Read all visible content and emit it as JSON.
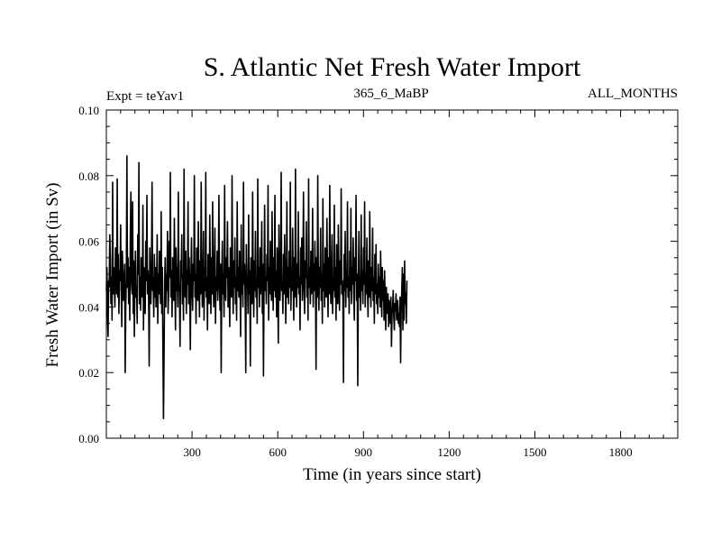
{
  "chart_data": {
    "type": "line",
    "title": "S. Atlantic Net Fresh Water Import",
    "subtitle_left": "Expt = teYav1",
    "subtitle_center": "365_6_MaBP",
    "subtitle_right": "ALL_MONTHS",
    "xlabel": "Time (in years since start)",
    "ylabel": "Fresh Water Import (in Sv)",
    "xlim": [
      0,
      2000
    ],
    "ylim": [
      0.0,
      0.1
    ],
    "xticks": [
      300,
      600,
      900,
      1200,
      1500,
      1800
    ],
    "xtick_labels": [
      "300",
      "600",
      "900",
      "1200",
      "1500",
      "1800"
    ],
    "yticks": [
      0.0,
      0.02,
      0.04,
      0.06,
      0.08,
      0.1
    ],
    "ytick_labels": [
      "0.00",
      "0.02",
      "0.04",
      "0.06",
      "0.08",
      "0.10"
    ],
    "grid": false,
    "series": [
      {
        "name": "Fresh Water Import",
        "color": "#000000",
        "sample_interval_years": 2,
        "mean": 0.048,
        "values": [
          0.045,
          0.052,
          0.038,
          0.031,
          0.048,
          0.046,
          0.062,
          0.055,
          0.041,
          0.049,
          0.036,
          0.078,
          0.044,
          0.052,
          0.047,
          0.04,
          0.058,
          0.051,
          0.044,
          0.079,
          0.043,
          0.056,
          0.038,
          0.051,
          0.048,
          0.065,
          0.045,
          0.034,
          0.057,
          0.05,
          0.042,
          0.046,
          0.053,
          0.02,
          0.04,
          0.049,
          0.086,
          0.046,
          0.055,
          0.041,
          0.052,
          0.036,
          0.063,
          0.075,
          0.047,
          0.044,
          0.072,
          0.038,
          0.054,
          0.031,
          0.048,
          0.057,
          0.043,
          0.045,
          0.035,
          0.062,
          0.05,
          0.084,
          0.041,
          0.049,
          0.039,
          0.055,
          0.047,
          0.043,
          0.071,
          0.033,
          0.052,
          0.046,
          0.038,
          0.06,
          0.048,
          0.074,
          0.044,
          0.051,
          0.042,
          0.022,
          0.058,
          0.046,
          0.041,
          0.053,
          0.078,
          0.045,
          0.049,
          0.037,
          0.056,
          0.043,
          0.052,
          0.04,
          0.047,
          0.062,
          0.035,
          0.05,
          0.044,
          0.057,
          0.046,
          0.041,
          0.069,
          0.038,
          0.052,
          0.027,
          0.006,
          0.025,
          0.048,
          0.055,
          0.04,
          0.05,
          0.045,
          0.063,
          0.038,
          0.044,
          0.06,
          0.049,
          0.081,
          0.043,
          0.051,
          0.037,
          0.055,
          0.048,
          0.042,
          0.067,
          0.046,
          0.033,
          0.058,
          0.045,
          0.052,
          0.04,
          0.075,
          0.047,
          0.044,
          0.028,
          0.054,
          0.049,
          0.062,
          0.041,
          0.05,
          0.036,
          0.082,
          0.046,
          0.043,
          0.057,
          0.038,
          0.051,
          0.047,
          0.072,
          0.041,
          0.055,
          0.044,
          0.027,
          0.049,
          0.061,
          0.045,
          0.039,
          0.053,
          0.048,
          0.08,
          0.043,
          0.05,
          0.035,
          0.058,
          0.046,
          0.042,
          0.066,
          0.049,
          0.037,
          0.054,
          0.044,
          0.078,
          0.051,
          0.04,
          0.047,
          0.063,
          0.036,
          0.052,
          0.045,
          0.081,
          0.043,
          0.049,
          0.033,
          0.056,
          0.047,
          0.041,
          0.068,
          0.05,
          0.038,
          0.055,
          0.044,
          0.072,
          0.048,
          0.04,
          0.052,
          0.064,
          0.035,
          0.049,
          0.045,
          0.057,
          0.042,
          0.051,
          0.074,
          0.046,
          0.039,
          0.053,
          0.02,
          0.048,
          0.06,
          0.044,
          0.05,
          0.037,
          0.077,
          0.046,
          0.042,
          0.055,
          0.049,
          0.066,
          0.04,
          0.052,
          0.045,
          0.034,
          0.058,
          0.047,
          0.043,
          0.08,
          0.05,
          0.038,
          0.054,
          0.046,
          0.061,
          0.041,
          0.049,
          0.036,
          0.072,
          0.045,
          0.052,
          0.043,
          0.057,
          0.048,
          0.031,
          0.065,
          0.044,
          0.05,
          0.04,
          0.078,
          0.047,
          0.053,
          0.042,
          0.02,
          0.059,
          0.046,
          0.049,
          0.038,
          0.068,
          0.044,
          0.051,
          0.022,
          0.055,
          0.047,
          0.041,
          0.075,
          0.05,
          0.037,
          0.054,
          0.045,
          0.063,
          0.043,
          0.048,
          0.035,
          0.079,
          0.046,
          0.052,
          0.04,
          0.058,
          0.044,
          0.05,
          0.066,
          0.038,
          0.053,
          0.019,
          0.047,
          0.071,
          0.045,
          0.049,
          0.041,
          0.056,
          0.048,
          0.077,
          0.036,
          0.052,
          0.044,
          0.06,
          0.047,
          0.042,
          0.069,
          0.05,
          0.039,
          0.055,
          0.045,
          0.074,
          0.043,
          0.051,
          0.037,
          0.058,
          0.046,
          0.029,
          0.065,
          0.049,
          0.042,
          0.053,
          0.081,
          0.045,
          0.048,
          0.038,
          0.056,
          0.044,
          0.062,
          0.05,
          0.035,
          0.047,
          0.072,
          0.043,
          0.052,
          0.041,
          0.057,
          0.046,
          0.078,
          0.039,
          0.051,
          0.045,
          0.064,
          0.048,
          0.036,
          0.055,
          0.043,
          0.082,
          0.05,
          0.04,
          0.053,
          0.046,
          0.069,
          0.044,
          0.049,
          0.033,
          0.058,
          0.047,
          0.061,
          0.042,
          0.051,
          0.075,
          0.045,
          0.038,
          0.054,
          0.049,
          0.066,
          0.043,
          0.05,
          0.036,
          0.079,
          0.046,
          0.052,
          0.041,
          0.057,
          0.044,
          0.048,
          0.07,
          0.04,
          0.053,
          0.045,
          0.06,
          0.047,
          0.021,
          0.055,
          0.043,
          0.08,
          0.049,
          0.039,
          0.052,
          0.046,
          0.064,
          0.042,
          0.05,
          0.035,
          0.073,
          0.045,
          0.053,
          0.04,
          0.058,
          0.047,
          0.043,
          0.067,
          0.05,
          0.037,
          0.055,
          0.044,
          0.077,
          0.048,
          0.041,
          0.051,
          0.062,
          0.038,
          0.049,
          0.045,
          0.071,
          0.043,
          0.052,
          0.036,
          0.059,
          0.046,
          0.041,
          0.065,
          0.05,
          0.039,
          0.054,
          0.047,
          0.076,
          0.044,
          0.048,
          0.042,
          0.017,
          0.056,
          0.045,
          0.063,
          0.04,
          0.051,
          0.046,
          0.072,
          0.043,
          0.049,
          0.038,
          0.057,
          0.045,
          0.07,
          0.041,
          0.052,
          0.047,
          0.061,
          0.044,
          0.036,
          0.055,
          0.048,
          0.074,
          0.042,
          0.05,
          0.016,
          0.046,
          0.063,
          0.043,
          0.049,
          0.039,
          0.068,
          0.045,
          0.051,
          0.041,
          0.058,
          0.047,
          0.072,
          0.04,
          0.05,
          0.044,
          0.061,
          0.046,
          0.037,
          0.054,
          0.043,
          0.069,
          0.048,
          0.04,
          0.052,
          0.045,
          0.064,
          0.042,
          0.049,
          0.035,
          0.056,
          0.044,
          0.059,
          0.041,
          0.047,
          0.038,
          0.053,
          0.043,
          0.049,
          0.04,
          0.057,
          0.045,
          0.037,
          0.052,
          0.042,
          0.048,
          0.036,
          0.051,
          0.041,
          0.033,
          0.046,
          0.04,
          0.038,
          0.044,
          0.034,
          0.042,
          0.039,
          0.035,
          0.043,
          0.028,
          0.038,
          0.04,
          0.045,
          0.037,
          0.033,
          0.041,
          0.039,
          0.044,
          0.036,
          0.04,
          0.042,
          0.035,
          0.038,
          0.034,
          0.043,
          0.023,
          0.039,
          0.045,
          0.052,
          0.033,
          0.05,
          0.036,
          0.054,
          0.041,
          0.044,
          0.035,
          0.048
        ]
      }
    ]
  }
}
